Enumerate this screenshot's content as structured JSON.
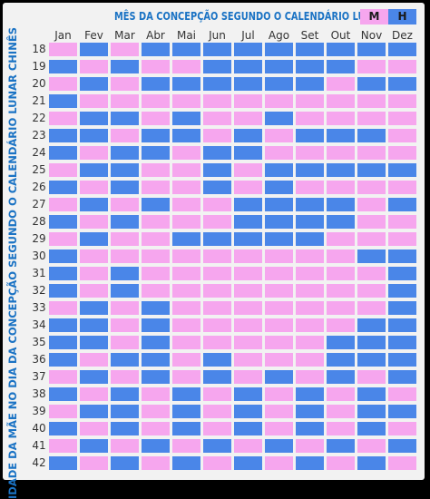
{
  "title": "MÊS DA CONCEPÇÃO SEGUNDO O CALENDÁRIO LUNAR",
  "legend": {
    "female": "M",
    "male": "H"
  },
  "y_axis_label": "IDADE DA MÃE NO DIA DA CONCEPÇÃO  SEGUNDO O CALENDÁRIO LUNAR CHINÊS",
  "colors": {
    "M": "#f6a6ee",
    "H": "#4a86e8",
    "title": "#1b73c4"
  },
  "months": [
    "Jan",
    "Fev",
    "Mar",
    "Abr",
    "Mai",
    "Jun",
    "Jul",
    "Ago",
    "Set",
    "Out",
    "Nov",
    "Dez"
  ],
  "ages": [
    "18",
    "19",
    "20",
    "21",
    "22",
    "23",
    "24",
    "25",
    "26",
    "27",
    "28",
    "29",
    "30",
    "31",
    "32",
    "33",
    "34",
    "35",
    "36",
    "37",
    "38",
    "39",
    "40",
    "41",
    "42"
  ],
  "grid": [
    [
      "M",
      "H",
      "M",
      "H",
      "H",
      "H",
      "H",
      "H",
      "H",
      "H",
      "H",
      "H"
    ],
    [
      "H",
      "M",
      "H",
      "M",
      "M",
      "H",
      "H",
      "H",
      "H",
      "H",
      "M",
      "M"
    ],
    [
      "M",
      "H",
      "M",
      "H",
      "H",
      "H",
      "H",
      "H",
      "H",
      "M",
      "H",
      "H"
    ],
    [
      "H",
      "M",
      "M",
      "M",
      "M",
      "M",
      "M",
      "M",
      "M",
      "M",
      "M",
      "M"
    ],
    [
      "M",
      "H",
      "H",
      "M",
      "H",
      "M",
      "M",
      "H",
      "M",
      "M",
      "M",
      "M"
    ],
    [
      "H",
      "H",
      "M",
      "H",
      "H",
      "M",
      "H",
      "M",
      "H",
      "H",
      "H",
      "M"
    ],
    [
      "H",
      "M",
      "H",
      "H",
      "M",
      "H",
      "H",
      "M",
      "M",
      "M",
      "M",
      "M"
    ],
    [
      "M",
      "H",
      "H",
      "M",
      "M",
      "H",
      "M",
      "H",
      "H",
      "H",
      "H",
      "H"
    ],
    [
      "H",
      "M",
      "H",
      "M",
      "M",
      "H",
      "M",
      "H",
      "M",
      "M",
      "M",
      "M"
    ],
    [
      "M",
      "H",
      "M",
      "H",
      "M",
      "M",
      "H",
      "H",
      "H",
      "H",
      "M",
      "H"
    ],
    [
      "H",
      "M",
      "H",
      "M",
      "M",
      "M",
      "H",
      "H",
      "H",
      "H",
      "M",
      "M"
    ],
    [
      "M",
      "H",
      "M",
      "M",
      "H",
      "H",
      "H",
      "H",
      "H",
      "M",
      "M",
      "M"
    ],
    [
      "H",
      "M",
      "M",
      "M",
      "M",
      "M",
      "M",
      "M",
      "M",
      "M",
      "H",
      "H"
    ],
    [
      "H",
      "M",
      "H",
      "M",
      "M",
      "M",
      "M",
      "M",
      "M",
      "M",
      "M",
      "H"
    ],
    [
      "H",
      "M",
      "H",
      "M",
      "M",
      "M",
      "M",
      "M",
      "M",
      "M",
      "M",
      "H"
    ],
    [
      "M",
      "H",
      "M",
      "H",
      "M",
      "M",
      "M",
      "M",
      "M",
      "M",
      "M",
      "H"
    ],
    [
      "H",
      "H",
      "M",
      "H",
      "M",
      "M",
      "M",
      "M",
      "M",
      "M",
      "H",
      "H"
    ],
    [
      "H",
      "H",
      "M",
      "H",
      "M",
      "M",
      "M",
      "M",
      "M",
      "H",
      "H",
      "H"
    ],
    [
      "H",
      "M",
      "H",
      "H",
      "M",
      "H",
      "M",
      "M",
      "M",
      "H",
      "H",
      "H"
    ],
    [
      "M",
      "H",
      "M",
      "H",
      "M",
      "H",
      "M",
      "H",
      "M",
      "H",
      "M",
      "H"
    ],
    [
      "H",
      "M",
      "H",
      "M",
      "H",
      "M",
      "H",
      "M",
      "H",
      "M",
      "H",
      "M"
    ],
    [
      "M",
      "H",
      "H",
      "M",
      "H",
      "M",
      "H",
      "M",
      "H",
      "M",
      "H",
      "H"
    ],
    [
      "H",
      "M",
      "H",
      "M",
      "H",
      "M",
      "H",
      "M",
      "H",
      "M",
      "H",
      "M"
    ],
    [
      "M",
      "H",
      "M",
      "H",
      "M",
      "H",
      "M",
      "H",
      "M",
      "H",
      "M",
      "H"
    ],
    [
      "H",
      "M",
      "H",
      "M",
      "H",
      "M",
      "H",
      "M",
      "H",
      "M",
      "H",
      "M"
    ]
  ]
}
